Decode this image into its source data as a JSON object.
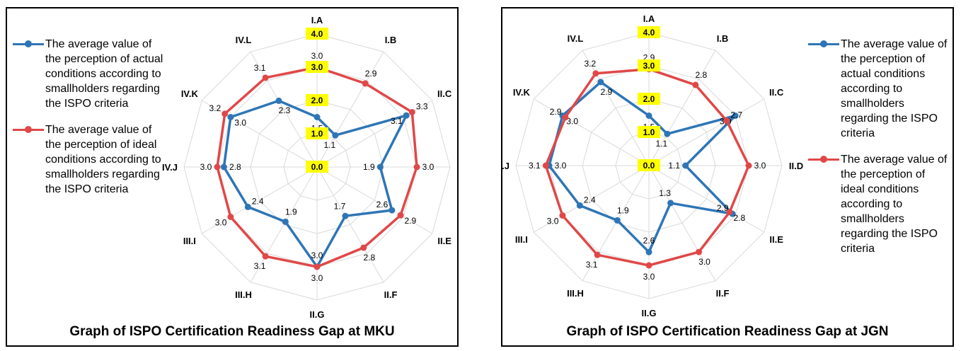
{
  "chart_data": [
    {
      "type": "radar",
      "title": "Graph of ISPO Certification Readiness Gap at MKU",
      "categories": [
        "I.A",
        "I.B",
        "II.C",
        "II.D",
        "II.E",
        "II.F",
        "II.G",
        "III.H",
        "III.I",
        "IV.J",
        "IV.K",
        "IV.L"
      ],
      "rlim": [
        0,
        4
      ],
      "tick_labels": [
        "0.0",
        "1.0",
        "2.0",
        "3.0",
        "4.0"
      ],
      "legend_position": "left",
      "series": [
        {
          "name": "The average value of the perception of actual conditions according to smallholders regarding the ISPO criteria",
          "color": "#2E75B6",
          "values": [
            1.5,
            1.1,
            3.1,
            1.9,
            2.6,
            1.7,
            3.0,
            1.9,
            2.4,
            2.8,
            3.0,
            2.3
          ],
          "labels": [
            "1.5",
            "1.1",
            "3.1",
            "1.9",
            "2.6",
            "1.7",
            "3.0",
            "1.9",
            "2.4",
            "2.8",
            "3.0",
            "2.3"
          ]
        },
        {
          "name": "The average value of the perception of ideal conditions according to smallholders regarding the ISPO criteria",
          "color": "#E04848",
          "values": [
            3.0,
            2.9,
            3.3,
            3.0,
            2.9,
            2.8,
            3.0,
            3.1,
            3.0,
            3.0,
            3.2,
            3.1
          ],
          "labels": [
            "3.0",
            "2.9",
            "3.3",
            "3.0",
            "2.9",
            "2.8",
            "3.0",
            "3.1",
            "3.0",
            "3.0",
            "3.2",
            "3.1"
          ]
        }
      ]
    },
    {
      "type": "radar",
      "title": "Graph of ISPO Certification Readiness Gap at JGN",
      "categories": [
        "I.A",
        "I.B",
        "II.C",
        "II.D",
        "II.E",
        "II.F",
        "II.G",
        "III.H",
        "III.I",
        "IV.J",
        "IV.K",
        "IV.L"
      ],
      "rlim": [
        0,
        4
      ],
      "tick_labels": [
        "0.0",
        "1.0",
        "2.0",
        "3.0",
        "4.0"
      ],
      "legend_position": "right",
      "series": [
        {
          "name": "The average value of the perception of actual conditions according to smallholders regarding the ISPO criteria",
          "color": "#2E75B6",
          "values": [
            1.5,
            1.1,
            3.0,
            1.1,
            2.9,
            1.3,
            2.6,
            1.9,
            2.4,
            3.0,
            3.0,
            2.9
          ],
          "labels": [
            "1.5",
            "1.1",
            "3.0",
            "1.1",
            "2.9",
            "1.3",
            "2.6",
            "1.9",
            "2.4",
            "3.0",
            "3.0",
            "2.9"
          ]
        },
        {
          "name": "The average value of the perception of ideal conditions according to smallholders regarding the ISPO criteria",
          "color": "#E04848",
          "values": [
            2.9,
            2.8,
            2.7,
            3.0,
            2.8,
            3.0,
            3.0,
            3.1,
            3.0,
            3.1,
            2.9,
            3.2
          ],
          "labels": [
            "2.9",
            "2.8",
            "2.7",
            "3.0",
            "2.8",
            "3.0",
            "3.0",
            "3.1",
            "3.0",
            "3.1",
            "2.9",
            "3.2"
          ]
        }
      ]
    }
  ]
}
